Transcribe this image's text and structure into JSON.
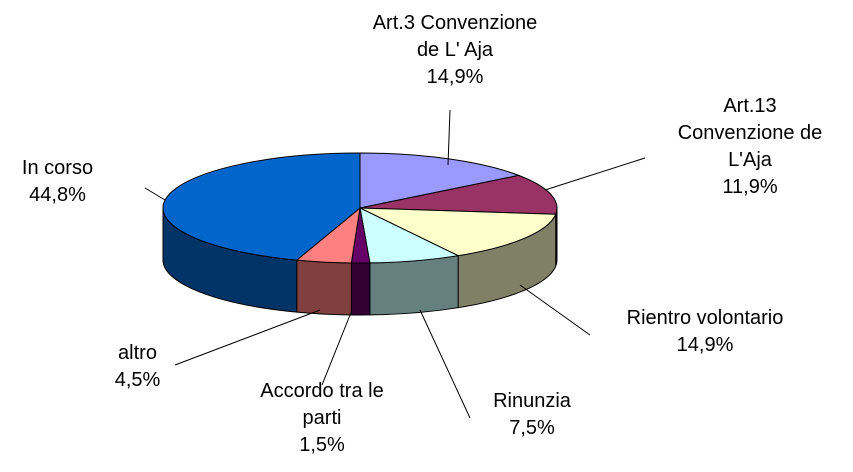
{
  "chart_data": {
    "type": "pie",
    "categories": [
      "Art.3 Convenzione de L' Aja",
      "Art.13 Convenzione de L'Aja",
      "Rientro volontario",
      "Rinunzia",
      "Accordo tra le parti",
      "altro",
      "In corso"
    ],
    "values": [
      14.9,
      11.9,
      14.9,
      7.5,
      1.5,
      4.5,
      44.8
    ],
    "value_labels": [
      "14,9%",
      "11,9%",
      "14,9%",
      "7,5%",
      "1,5%",
      "4,5%",
      "44,8%"
    ],
    "colors": [
      "#9999ff",
      "#993366",
      "#ffffcc",
      "#ccffff",
      "#660066",
      "#ff8080",
      "#0066cc"
    ]
  }
}
